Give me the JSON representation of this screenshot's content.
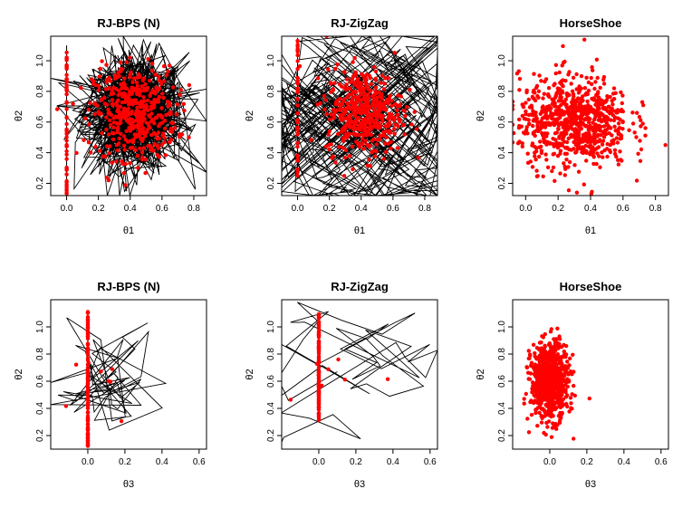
{
  "chart_data": [
    {
      "type": "scatter",
      "title": "RJ-BPS (N)",
      "xlabel": "θ1",
      "ylabel": "θ2",
      "xlim": [
        -0.1,
        0.88
      ],
      "ylim": [
        0.12,
        1.16
      ],
      "xticks": [
        "0.0",
        "0.2",
        "0.4",
        "0.6",
        "0.8"
      ],
      "xtick_values": [
        0.0,
        0.2,
        0.4,
        0.6,
        0.8
      ],
      "yticks": [
        "0.2",
        "0.4",
        "0.6",
        "0.8",
        "1.0"
      ],
      "ytick_values": [
        0.2,
        0.4,
        0.6,
        0.8,
        1.0
      ],
      "trajectory": "dense piecewise-linear trace (Gaussian cloud) with vertical segment at θ1=0",
      "point_color": "#ff0000",
      "line_color": "#000000",
      "cloud": {
        "center": [
          0.43,
          0.66
        ],
        "sd": [
          0.13,
          0.15
        ],
        "n_points": 450,
        "n_lines": 700
      },
      "zero_axis": {
        "position": 0.0,
        "range": [
          0.13,
          1.1
        ],
        "n_points": 60
      }
    },
    {
      "type": "scatter",
      "title": "RJ-ZigZag",
      "xlabel": "θ1",
      "ylabel": "θ2",
      "xlim": [
        -0.1,
        0.88
      ],
      "ylim": [
        0.12,
        1.16
      ],
      "xticks": [
        "0.0",
        "0.2",
        "0.4",
        "0.6",
        "0.8"
      ],
      "xtick_values": [
        0.0,
        0.2,
        0.4,
        0.6,
        0.8
      ],
      "yticks": [
        "0.2",
        "0.4",
        "0.6",
        "0.8",
        "1.0"
      ],
      "ytick_values": [
        0.2,
        0.4,
        0.6,
        0.8,
        1.0
      ],
      "trajectory": "dense zig-zag trace of diagonal segments with vertical segment at θ1=0",
      "point_color": "#ff0000",
      "line_color": "#000000",
      "cloud": {
        "center": [
          0.42,
          0.67
        ],
        "sd": [
          0.12,
          0.14
        ],
        "n_points": 450,
        "n_lines": 700
      },
      "zero_axis": {
        "position": 0.0,
        "range": [
          0.25,
          1.15
        ],
        "n_points": 40
      }
    },
    {
      "type": "scatter",
      "title": "HorseShoe",
      "xlabel": "θ1",
      "ylabel": "θ2",
      "xlim": [
        -0.08,
        0.88
      ],
      "ylim": [
        0.12,
        1.16
      ],
      "xticks": [
        "0.0",
        "0.2",
        "0.4",
        "0.6",
        "0.8"
      ],
      "xtick_values": [
        0.0,
        0.2,
        0.4,
        0.6,
        0.8
      ],
      "yticks": [
        "0.2",
        "0.4",
        "0.6",
        "0.8",
        "1.0"
      ],
      "ytick_values": [
        0.2,
        0.4,
        0.6,
        0.8,
        1.0
      ],
      "point_color": "#ff0000",
      "cloud": {
        "center": [
          0.3,
          0.6
        ],
        "sd": [
          0.17,
          0.15
        ],
        "n_points": 800,
        "n_lines": 0
      }
    },
    {
      "type": "scatter",
      "title": "RJ-BPS (N)",
      "xlabel": "θ3",
      "ylabel": "θ2",
      "xlim": [
        -0.2,
        0.64
      ],
      "ylim": [
        0.1,
        1.2
      ],
      "xticks": [
        "0.0",
        "0.2",
        "0.4",
        "0.6"
      ],
      "xtick_values": [
        0.0,
        0.2,
        0.4,
        0.6
      ],
      "yticks": [
        "0.2",
        "0.4",
        "0.6",
        "0.8",
        "1.0"
      ],
      "ytick_values": [
        0.2,
        0.4,
        0.6,
        0.8,
        1.0
      ],
      "trajectory": "sparse piecewise-linear trace with vertical segment at θ3=0",
      "point_color": "#ff0000",
      "line_color": "#000000",
      "cloud": {
        "center": [
          0.08,
          0.65
        ],
        "sd": [
          0.14,
          0.15
        ],
        "n_points": 8,
        "n_lines": 60
      },
      "zero_axis": {
        "position": 0.0,
        "range": [
          0.12,
          1.12
        ],
        "n_points": 120
      }
    },
    {
      "type": "scatter",
      "title": "RJ-ZigZag",
      "xlabel": "θ3",
      "ylabel": "θ2",
      "xlim": [
        -0.2,
        0.64
      ],
      "ylim": [
        0.1,
        1.2
      ],
      "xticks": [
        "0.0",
        "0.2",
        "0.4",
        "0.6"
      ],
      "xtick_values": [
        0.0,
        0.2,
        0.4,
        0.6
      ],
      "yticks": [
        "0.2",
        "0.4",
        "0.6",
        "0.8",
        "1.0"
      ],
      "ytick_values": [
        0.2,
        0.4,
        0.6,
        0.8,
        1.0
      ],
      "trajectory": "sparse zig-zag trace of diagonal segments with vertical segment at θ3=0",
      "point_color": "#ff0000",
      "line_color": "#000000",
      "cloud": {
        "center": [
          0.1,
          0.67
        ],
        "sd": [
          0.12,
          0.12
        ],
        "n_points": 8,
        "n_lines": 60
      },
      "zero_axis": {
        "position": 0.0,
        "range": [
          0.3,
          1.1
        ],
        "n_points": 120
      }
    },
    {
      "type": "scatter",
      "title": "HorseShoe",
      "xlabel": "θ3",
      "ylabel": "θ2",
      "xlim": [
        -0.2,
        0.64
      ],
      "ylim": [
        0.1,
        1.2
      ],
      "xticks": [
        "0.0",
        "0.2",
        "0.4",
        "0.6"
      ],
      "xtick_values": [
        0.0,
        0.2,
        0.4,
        0.6
      ],
      "yticks": [
        "0.2",
        "0.4",
        "0.6",
        "0.8",
        "1.0"
      ],
      "ytick_values": [
        0.2,
        0.4,
        0.6,
        0.8,
        1.0
      ],
      "point_color": "#ff0000",
      "cloud": {
        "center": [
          0.0,
          0.6
        ],
        "sd": [
          0.05,
          0.14
        ],
        "n_points": 800,
        "n_lines": 0
      }
    }
  ]
}
